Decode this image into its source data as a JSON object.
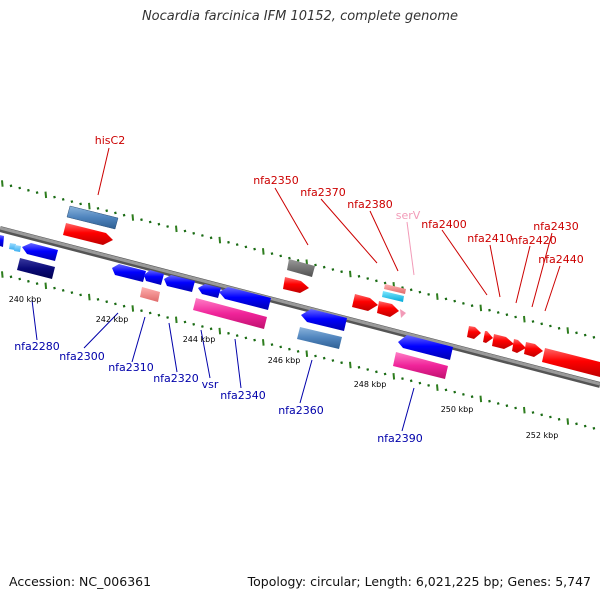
{
  "title": "Nocardia farcinica IFM 10152, complete genome",
  "footer": {
    "accession": "Accession: NC_006361",
    "summary": "Topology: circular; Length: 6,021,225 bp; Genes: 5,747"
  },
  "colors": {
    "backbone": "#808080",
    "tick_major": "#2e7d1e",
    "tick_minor": "#1a6b14",
    "label_forward": "#cc0000",
    "label_reverse": "#0000aa",
    "label_rna": "#f29bb8",
    "label_scale": "#000000"
  },
  "scale_labels": [
    "240 kbp",
    "242 kbp",
    "244 kbp",
    "246 kbp",
    "248 kbp",
    "250 kbp",
    "252 kbp"
  ],
  "gene_labels": {
    "forward": [
      "hisC2",
      "nfa2350",
      "nfa2370",
      "nfa2380",
      "nfa2400",
      "nfa2410",
      "nfa2420",
      "nfa2430",
      "nfa2440"
    ],
    "rna": [
      "serV"
    ],
    "reverse": [
      "nfa2280",
      "nfa2300",
      "nfa2310",
      "nfa2320",
      "vsr",
      "nfa2340",
      "nfa2360",
      "nfa2390"
    ]
  }
}
